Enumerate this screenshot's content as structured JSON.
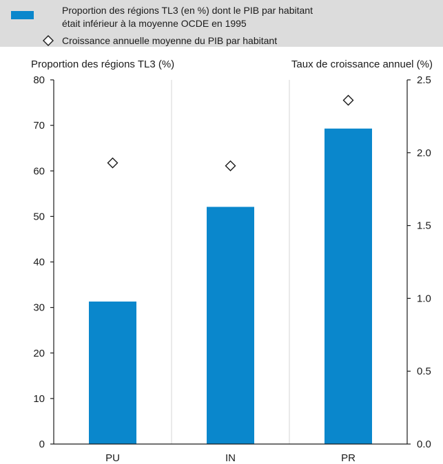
{
  "chart_data": {
    "type": "bar",
    "legend": {
      "bar_label_line1": "Proportion des régions TL3 (en %) dont le PIB par habitant",
      "bar_label_line2": "était inférieur à la moyenne OCDE en 1995",
      "marker_label": "Croissance annuelle moyenne du PIB par habitant",
      "placement": "top"
    },
    "ylabel_left": "Proportion des régions TL3 (%)",
    "ylabel_right": "Taux de croissance annuel (%)",
    "categories": [
      "PU",
      "IN",
      "PR"
    ],
    "series": [
      {
        "name": "Proportion des régions TL3 (en %) dont le PIB par habitant était inférieur à la moyenne OCDE en 1995",
        "axis": "left",
        "type": "bar",
        "values": [
          31.3,
          52.1,
          69.3
        ]
      },
      {
        "name": "Croissance annuelle moyenne du PIB par habitant",
        "axis": "right",
        "type": "scatter",
        "marker": "diamond",
        "values": [
          1.93,
          1.91,
          2.36
        ]
      }
    ],
    "ylim_left": [
      0,
      80
    ],
    "ylim_right": [
      0.0,
      2.5
    ],
    "yticks_left": [
      "0",
      "10",
      "20",
      "30",
      "40",
      "50",
      "60",
      "70",
      "80"
    ],
    "yticks_right": [
      "0.0",
      "0.5",
      "1.0",
      "1.5",
      "2.0",
      "2.5"
    ],
    "grid": "vertical",
    "colors": {
      "bar": "#0a87cc",
      "marker": "#1a1a1a",
      "legend_bg": "#dcdcdc"
    }
  }
}
